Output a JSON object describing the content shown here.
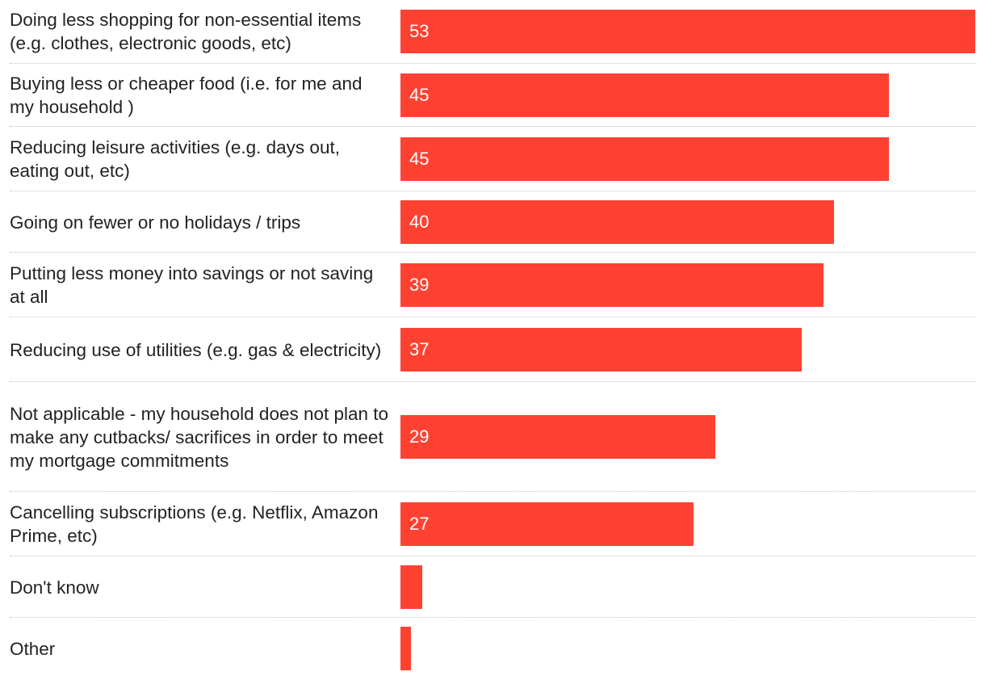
{
  "chart_data": {
    "type": "bar",
    "orientation": "horizontal",
    "title": "",
    "xlabel": "",
    "ylabel": "",
    "xlim": [
      0,
      53
    ],
    "bar_color": "#ff4132",
    "categories": [
      "Doing less shopping for non-essential items (e.g. clothes, electronic goods, etc)",
      "Buying less or cheaper food (i.e. for me and my household )",
      "Reducing leisure activities (e.g. days out, eating out, etc)",
      "Going on fewer or no holidays / trips",
      "Putting less money into savings or not saving at all",
      "Reducing use of utilities (e.g. gas & electricity)",
      "Not applicable - my household does not plan to make any cutbacks/ sacrifices in order to meet my mortgage commitments",
      "Cancelling subscriptions (e.g. Netflix, Amazon Prime, etc)",
      "Don't know",
      "Other"
    ],
    "values": [
      53,
      45,
      45,
      40,
      39,
      37,
      29,
      27,
      2,
      1
    ],
    "value_labels": [
      "53",
      "45",
      "45",
      "40",
      "39",
      "37",
      "29",
      "27",
      "",
      ""
    ]
  }
}
